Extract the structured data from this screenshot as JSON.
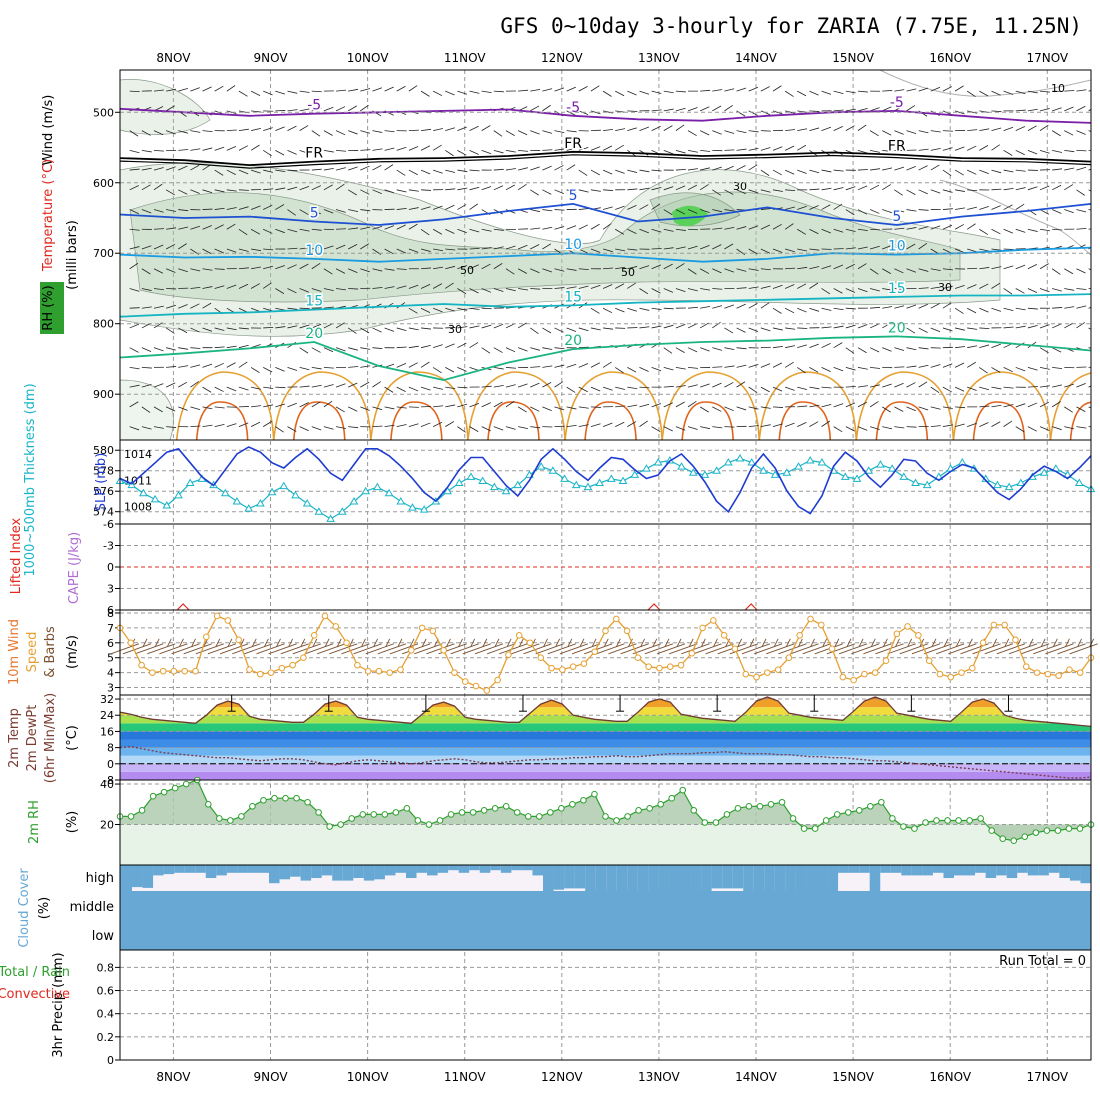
{
  "title": "GFS 0~10day 3-hourly for ZARIA (7.75E, 11.25N)",
  "dates": [
    "8NOV",
    "9NOV",
    "10NOV",
    "11NOV",
    "12NOV",
    "13NOV",
    "14NOV",
    "15NOV",
    "16NOV",
    "17NOV"
  ],
  "chart_data": [
    {
      "panel": "upper-air",
      "type": "heatmap",
      "ylabel_parts": [
        "Wind (m/s)",
        "Temperature (°C)",
        "(milli bars)",
        "RH (%)"
      ],
      "colors": {
        "wind": "#000000",
        "temperature": "#e0281e",
        "pressure": "#000000",
        "rh": "#2fa02f",
        "rh_fill": "#a9c8a9"
      },
      "y_ticks": [
        500,
        600,
        700,
        800,
        900
      ],
      "ylim": [
        440,
        965
      ],
      "temperature_contours": [
        {
          "label": "-5",
          "color": "#7a1fa8",
          "y": [
            495,
            500,
            505,
            502,
            500,
            498,
            496,
            505,
            510,
            512,
            505,
            500,
            498,
            505,
            512,
            515
          ]
        },
        {
          "label": "FR",
          "color": "#000000",
          "y": [
            565,
            568,
            575,
            570,
            566,
            565,
            562,
            556,
            558,
            562,
            560,
            557,
            560,
            565,
            566,
            570
          ]
        },
        {
          "label": "5",
          "color": "#1e50d2",
          "y": [
            645,
            650,
            648,
            655,
            660,
            652,
            640,
            630,
            655,
            648,
            635,
            650,
            660,
            648,
            640,
            630
          ]
        },
        {
          "label": "10",
          "color": "#199be1",
          "y": [
            702,
            706,
            705,
            708,
            712,
            708,
            704,
            700,
            706,
            712,
            708,
            700,
            702,
            700,
            695,
            692
          ]
        },
        {
          "label": "15",
          "color": "#14b4c3",
          "y": [
            790,
            786,
            784,
            780,
            776,
            772,
            776,
            774,
            770,
            768,
            766,
            764,
            762,
            760,
            760,
            758
          ]
        },
        {
          "label": "20",
          "color": "#19b482",
          "y": [
            848,
            842,
            835,
            826,
            860,
            880,
            855,
            836,
            830,
            826,
            824,
            820,
            818,
            822,
            830,
            838
          ]
        }
      ],
      "rh_contour_labels": [
        "10",
        "30",
        "50"
      ]
    },
    {
      "panel": "thickness-slp",
      "type": "line",
      "ylabel": "1000~500mb Thickness (dm)",
      "ylabel2": "SLP (mb)",
      "left_ticks": [
        574,
        576,
        578,
        580
      ],
      "right_ticks": [
        1008,
        1011,
        1014
      ],
      "series": [
        {
          "name": "1000~500mb Thickness (dm)",
          "color": "#19b4c8",
          "values": [
            577.0,
            576.6,
            575.8,
            575.2,
            574.6,
            575.6,
            576.8,
            577.2,
            576.6,
            575.8,
            575.0,
            574.3,
            574.8,
            575.9,
            576.5,
            575.6,
            574.8,
            574.0,
            573.3,
            574.0,
            575.0,
            576.0,
            576.4,
            575.8,
            575.0,
            574.4,
            574.2,
            575.0,
            576.0,
            576.8,
            577.4,
            577.0,
            576.4,
            576.0,
            576.6,
            577.6,
            578.4,
            578.0,
            577.2,
            576.6,
            576.4,
            576.8,
            577.2,
            577.0,
            577.6,
            578.2,
            578.8,
            579.0,
            578.4,
            577.8,
            577.6,
            578.0,
            578.8,
            579.2,
            578.8,
            578.0,
            577.6,
            577.8,
            578.4,
            579.0,
            578.8,
            578.0,
            577.4,
            577.2,
            578.0,
            578.6,
            578.2,
            577.4,
            576.8,
            576.6,
            577.4,
            578.2,
            578.8,
            578.2,
            577.2,
            576.6,
            576.4,
            576.8,
            577.4,
            577.8,
            578.2,
            577.6,
            576.8,
            576.2
          ]
        },
        {
          "name": "SLP (mb)",
          "color": "#1e3cd2",
          "values": [
            1011.2,
            1010.6,
            1011.8,
            1013.0,
            1014.2,
            1014.6,
            1013.0,
            1011.4,
            1010.4,
            1012.2,
            1014.0,
            1014.8,
            1014.2,
            1013.0,
            1012.4,
            1013.6,
            1014.6,
            1013.4,
            1011.8,
            1011.0,
            1012.8,
            1014.6,
            1014.6,
            1013.8,
            1012.6,
            1011.2,
            1009.6,
            1008.6,
            1010.2,
            1012.2,
            1013.6,
            1013.6,
            1012.0,
            1010.4,
            1009.2,
            1011.0,
            1013.4,
            1014.6,
            1013.4,
            1012.0,
            1011.0,
            1012.4,
            1013.6,
            1013.4,
            1012.2,
            1011.2,
            1011.6,
            1013.2,
            1014.0,
            1012.6,
            1010.8,
            1008.6,
            1007.4,
            1009.6,
            1012.4,
            1014.0,
            1012.4,
            1009.8,
            1008.0,
            1007.2,
            1009.2,
            1012.6,
            1014.2,
            1013.2,
            1011.4,
            1010.2,
            1011.6,
            1013.4,
            1013.2,
            1011.8,
            1011.0,
            1012.0,
            1012.8,
            1012.4,
            1011.0,
            1009.6,
            1008.8,
            1010.0,
            1011.6,
            1012.6,
            1012.0,
            1011.2,
            1012.4,
            1013.8
          ]
        }
      ]
    },
    {
      "panel": "lifted-index-cape",
      "type": "line",
      "ylabel": "Lifted Index",
      "ylabel2": "CAPE (J/kg)",
      "y_ticks": [
        -6,
        -3,
        0,
        3,
        6
      ],
      "ylim": [
        6,
        -6
      ],
      "zero_line_color": "#e0281e",
      "cape_peaks_days": [
        0.1,
        4.95,
        5.95
      ]
    },
    {
      "panel": "wind-10m",
      "type": "line",
      "ylabel_parts": [
        "10m Wind",
        "Speed",
        "& Barbs",
        "(m/s)"
      ],
      "y_ticks": [
        3,
        4,
        5,
        6,
        7,
        8
      ],
      "ylim": [
        2.5,
        8.2
      ],
      "series": [
        {
          "name": "10m Wind Speed",
          "color": "#e6a032",
          "values": [
            7.0,
            6.0,
            4.5,
            4.0,
            4.1,
            4.1,
            4.1,
            4.1,
            6.4,
            7.8,
            7.5,
            6.2,
            4.2,
            3.9,
            4.0,
            4.3,
            4.5,
            5.0,
            6.5,
            7.8,
            7.1,
            6.0,
            4.5,
            4.1,
            4.1,
            4.0,
            4.2,
            5.5,
            7.0,
            6.8,
            5.5,
            4.0,
            3.4,
            3.1,
            2.8,
            3.5,
            5.2,
            6.5,
            6.0,
            5.0,
            4.3,
            4.2,
            4.4,
            4.6,
            5.4,
            6.8,
            7.6,
            6.8,
            5.0,
            4.4,
            4.3,
            4.4,
            4.5,
            5.3,
            7.0,
            7.5,
            6.5,
            5.6,
            3.9,
            3.7,
            4.0,
            4.2,
            5.0,
            6.5,
            7.6,
            7.2,
            5.6,
            3.7,
            3.5,
            3.9,
            4.0,
            4.8,
            6.6,
            7.1,
            6.5,
            4.8,
            3.9,
            3.7,
            4.0,
            4.3,
            6.0,
            7.2,
            7.2,
            6.2,
            4.4,
            4.0,
            3.9,
            3.8,
            4.2,
            4.0,
            5.0
          ]
        }
      ]
    },
    {
      "panel": "temperature-2m",
      "type": "area",
      "ylabel_parts": [
        "2m Temp",
        "2m DewPt",
        "(6hr Min/Max)",
        "(°C)"
      ],
      "y_ticks": [
        -8,
        0,
        8,
        16,
        24,
        32
      ],
      "ylim": [
        -8,
        34
      ],
      "series": [
        {
          "name": "2m Temp",
          "color": "#6e3c32",
          "values": [
            25.5,
            24.5,
            23.0,
            22.0,
            21.5,
            21.0,
            20.5,
            20.0,
            24.0,
            29.0,
            31.0,
            29.5,
            23.5,
            22.0,
            21.5,
            21.0,
            20.5,
            20.5,
            24.5,
            29.5,
            31.0,
            29.0,
            23.0,
            22.0,
            21.5,
            21.0,
            20.5,
            20.0,
            24.5,
            29.0,
            30.5,
            28.5,
            23.0,
            22.0,
            21.5,
            21.0,
            20.5,
            20.5,
            25.0,
            29.5,
            31.5,
            29.5,
            24.0,
            23.0,
            22.0,
            21.5,
            21.0,
            21.0,
            25.5,
            30.5,
            32.0,
            30.5,
            24.5,
            23.5,
            22.5,
            22.0,
            21.5,
            21.0,
            25.5,
            31.0,
            33.0,
            31.0,
            25.0,
            24.0,
            23.0,
            22.5,
            22.0,
            21.5,
            26.0,
            31.0,
            33.0,
            31.0,
            25.0,
            24.0,
            23.0,
            22.0,
            21.5,
            21.0,
            25.5,
            30.5,
            32.0,
            30.0,
            24.0,
            22.5,
            21.5,
            21.0,
            20.5,
            20.0,
            19.5,
            19.0,
            18.5
          ]
        },
        {
          "name": "2m DewPt",
          "color": "#7a3c50",
          "values": [
            8.0,
            8.5,
            7.5,
            6.5,
            5.5,
            5.0,
            4.5,
            4.0,
            3.5,
            3.0,
            3.0,
            2.5,
            2.0,
            1.5,
            2.0,
            2.5,
            2.5,
            2.0,
            1.0,
            0.0,
            -0.5,
            0.5,
            1.5,
            2.0,
            1.5,
            1.0,
            0.5,
            0.0,
            0.5,
            1.5,
            2.0,
            2.5,
            2.0,
            1.0,
            0.5,
            0.5,
            1.0,
            1.5,
            2.0,
            2.0,
            2.5,
            2.5,
            3.0,
            3.0,
            3.5,
            3.5,
            4.0,
            3.5,
            3.5,
            4.0,
            4.5,
            5.0,
            5.0,
            5.0,
            5.5,
            5.5,
            6.0,
            5.5,
            5.0,
            5.0,
            5.0,
            4.5,
            4.5,
            4.0,
            3.5,
            3.5,
            3.0,
            3.0,
            2.5,
            2.0,
            1.5,
            1.5,
            1.0,
            0.5,
            0.0,
            -0.5,
            -1.0,
            -1.5,
            -2.0,
            -2.5,
            -3.0,
            -3.5,
            -4.0,
            -4.5,
            -5.0,
            -5.5,
            -6.0,
            -6.5,
            -7.0,
            -7.0,
            -6.5
          ]
        }
      ]
    },
    {
      "panel": "rh-2m",
      "type": "area",
      "ylabel": "2m RH",
      "ylabel2": "(%)",
      "y_ticks": [
        20,
        40
      ],
      "ylim": [
        0,
        42
      ],
      "series": [
        {
          "name": "2m RH",
          "color": "#2fa02f",
          "values": [
            24,
            24,
            27,
            34,
            36,
            38,
            40,
            42,
            30,
            23,
            22,
            24,
            29,
            32,
            33,
            33,
            33,
            31,
            26,
            19,
            20,
            23,
            25,
            25,
            25,
            26,
            28,
            22,
            20,
            22,
            25,
            26,
            26,
            27,
            28,
            29,
            26,
            24,
            24,
            26,
            28,
            30,
            32,
            35,
            24,
            22,
            24,
            27,
            28,
            30,
            33,
            37,
            27,
            21,
            21,
            25,
            28,
            29,
            29,
            30,
            31,
            23,
            18,
            18,
            22,
            25,
            26,
            27,
            29,
            31,
            23,
            19,
            18,
            21,
            22,
            22,
            22,
            22,
            23,
            17,
            13,
            12,
            14,
            16,
            17,
            17,
            18,
            18,
            20
          ]
        }
      ]
    },
    {
      "panel": "cloud-cover",
      "type": "heatmap",
      "ylabel": "Cloud Cover",
      "ylabel2": "(%)",
      "levels": [
        "high",
        "middle",
        "low"
      ],
      "color": "#68a8d4",
      "high": [
        85,
        88,
        40,
        35,
        30,
        30,
        30,
        50,
        40,
        30,
        30,
        30,
        30,
        70,
        55,
        45,
        60,
        50,
        40,
        60,
        60,
        50,
        60,
        55,
        40,
        30,
        50,
        30,
        40,
        30,
        20,
        30,
        20,
        30,
        20,
        30,
        20,
        20,
        40,
        100,
        95,
        90,
        90,
        100,
        100,
        100,
        100,
        100,
        100,
        100,
        100,
        100,
        100,
        100,
        100,
        90,
        90,
        90,
        100,
        100,
        100,
        100,
        100,
        100,
        100,
        100,
        100,
        30,
        30,
        30,
        100,
        30,
        30,
        40,
        40,
        40,
        30,
        50,
        40,
        40,
        30,
        50,
        40,
        50,
        30,
        40,
        40,
        30,
        50,
        60,
        70
      ]
    },
    {
      "panel": "precipitation",
      "type": "bar",
      "ylabel": "3hr Precip (mm)",
      "ylabel_left": [
        "Total / Rain",
        "Convective"
      ],
      "y_ticks": [
        0,
        0.2,
        0.4,
        0.6,
        0.8
      ],
      "ylim": [
        0,
        0.95
      ],
      "run_total": "Run Total = 0",
      "values": []
    }
  ]
}
